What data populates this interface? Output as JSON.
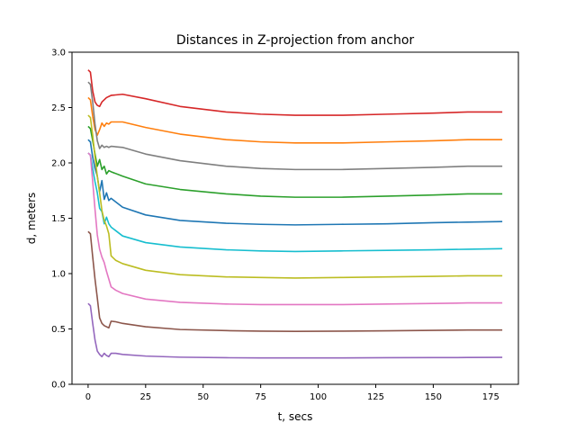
{
  "chart_data": {
    "type": "line",
    "title": "Distances in Z-projection from anchor",
    "xlabel": "t, secs",
    "ylabel": "d, meters",
    "xlim": [
      -7,
      187
    ],
    "ylim": [
      0.0,
      3.0
    ],
    "xticks": [
      0,
      25,
      50,
      75,
      100,
      125,
      150,
      175
    ],
    "yticks": [
      "0.0",
      "0.5",
      "1.0",
      "1.5",
      "2.0",
      "2.5",
      "3.0"
    ],
    "grid": false,
    "series": [
      {
        "color": "#d62728",
        "points": [
          [
            0,
            2.84
          ],
          [
            1,
            2.82
          ],
          [
            2,
            2.65
          ],
          [
            3,
            2.55
          ],
          [
            4,
            2.52
          ],
          [
            5,
            2.51
          ],
          [
            6,
            2.55
          ],
          [
            8,
            2.59
          ],
          [
            10,
            2.61
          ],
          [
            15,
            2.62
          ],
          [
            25,
            2.58
          ],
          [
            40,
            2.51
          ],
          [
            60,
            2.46
          ],
          [
            75,
            2.44
          ],
          [
            90,
            2.43
          ],
          [
            110,
            2.43
          ],
          [
            130,
            2.44
          ],
          [
            150,
            2.45
          ],
          [
            165,
            2.46
          ],
          [
            180,
            2.46
          ]
        ]
      },
      {
        "color": "#ff7f0e",
        "points": [
          [
            0,
            2.59
          ],
          [
            1,
            2.57
          ],
          [
            2,
            2.42
          ],
          [
            3,
            2.3
          ],
          [
            4,
            2.25
          ],
          [
            5,
            2.3
          ],
          [
            6,
            2.36
          ],
          [
            7,
            2.33
          ],
          [
            8,
            2.36
          ],
          [
            9,
            2.35
          ],
          [
            10,
            2.37
          ],
          [
            15,
            2.37
          ],
          [
            25,
            2.32
          ],
          [
            40,
            2.26
          ],
          [
            60,
            2.21
          ],
          [
            75,
            2.19
          ],
          [
            90,
            2.18
          ],
          [
            110,
            2.18
          ],
          [
            130,
            2.19
          ],
          [
            150,
            2.2
          ],
          [
            165,
            2.21
          ],
          [
            180,
            2.21
          ]
        ]
      },
      {
        "color": "#7f7f7f",
        "points": [
          [
            0,
            2.73
          ],
          [
            1,
            2.71
          ],
          [
            2,
            2.55
          ],
          [
            3,
            2.35
          ],
          [
            4,
            2.2
          ],
          [
            5,
            2.13
          ],
          [
            6,
            2.16
          ],
          [
            7,
            2.14
          ],
          [
            8,
            2.15
          ],
          [
            9,
            2.14
          ],
          [
            10,
            2.15
          ],
          [
            15,
            2.14
          ],
          [
            25,
            2.08
          ],
          [
            40,
            2.02
          ],
          [
            60,
            1.97
          ],
          [
            75,
            1.95
          ],
          [
            90,
            1.94
          ],
          [
            110,
            1.94
          ],
          [
            130,
            1.95
          ],
          [
            150,
            1.96
          ],
          [
            165,
            1.97
          ],
          [
            180,
            1.97
          ]
        ]
      },
      {
        "color": "#2ca02c",
        "points": [
          [
            0,
            2.33
          ],
          [
            1,
            2.31
          ],
          [
            2,
            2.2
          ],
          [
            3,
            2.08
          ],
          [
            4,
            1.97
          ],
          [
            5,
            2.03
          ],
          [
            6,
            1.94
          ],
          [
            7,
            1.97
          ],
          [
            8,
            1.9
          ],
          [
            9,
            1.93
          ],
          [
            10,
            1.92
          ],
          [
            15,
            1.88
          ],
          [
            25,
            1.81
          ],
          [
            40,
            1.76
          ],
          [
            60,
            1.72
          ],
          [
            75,
            1.7
          ],
          [
            90,
            1.69
          ],
          [
            110,
            1.69
          ],
          [
            130,
            1.7
          ],
          [
            150,
            1.71
          ],
          [
            165,
            1.72
          ],
          [
            180,
            1.72
          ]
        ]
      },
      {
        "color": "#1f77b4",
        "points": [
          [
            0,
            2.21
          ],
          [
            1,
            2.19
          ],
          [
            2,
            2.05
          ],
          [
            3,
            1.95
          ],
          [
            4,
            1.88
          ],
          [
            5,
            1.74
          ],
          [
            6,
            1.84
          ],
          [
            7,
            1.67
          ],
          [
            8,
            1.73
          ],
          [
            9,
            1.66
          ],
          [
            10,
            1.68
          ],
          [
            15,
            1.6
          ],
          [
            25,
            1.53
          ],
          [
            40,
            1.48
          ],
          [
            60,
            1.455
          ],
          [
            75,
            1.445
          ],
          [
            90,
            1.44
          ],
          [
            110,
            1.445
          ],
          [
            130,
            1.45
          ],
          [
            150,
            1.46
          ],
          [
            165,
            1.465
          ],
          [
            180,
            1.47
          ]
        ]
      },
      {
        "color": "#17becf",
        "points": [
          [
            0,
            2.09
          ],
          [
            1,
            2.07
          ],
          [
            2,
            1.95
          ],
          [
            3,
            1.83
          ],
          [
            4,
            1.73
          ],
          [
            5,
            1.59
          ],
          [
            6,
            1.56
          ],
          [
            7,
            1.45
          ],
          [
            8,
            1.51
          ],
          [
            9,
            1.45
          ],
          [
            10,
            1.42
          ],
          [
            15,
            1.34
          ],
          [
            25,
            1.28
          ],
          [
            40,
            1.24
          ],
          [
            60,
            1.215
          ],
          [
            75,
            1.205
          ],
          [
            90,
            1.2
          ],
          [
            110,
            1.205
          ],
          [
            130,
            1.21
          ],
          [
            150,
            1.215
          ],
          [
            165,
            1.22
          ],
          [
            180,
            1.225
          ]
        ]
      },
      {
        "color": "#bcbd22",
        "points": [
          [
            0,
            2.43
          ],
          [
            1,
            2.41
          ],
          [
            2,
            2.25
          ],
          [
            3,
            2.05
          ],
          [
            4,
            1.88
          ],
          [
            5,
            1.73
          ],
          [
            6,
            1.57
          ],
          [
            7,
            1.48
          ],
          [
            8,
            1.43
          ],
          [
            9,
            1.36
          ],
          [
            10,
            1.16
          ],
          [
            12,
            1.12
          ],
          [
            15,
            1.09
          ],
          [
            25,
            1.03
          ],
          [
            40,
            0.99
          ],
          [
            60,
            0.97
          ],
          [
            75,
            0.965
          ],
          [
            90,
            0.96
          ],
          [
            110,
            0.965
          ],
          [
            130,
            0.97
          ],
          [
            150,
            0.975
          ],
          [
            165,
            0.98
          ],
          [
            180,
            0.98
          ]
        ]
      },
      {
        "color": "#e377c2",
        "points": [
          [
            0,
            2.09
          ],
          [
            1,
            2.07
          ],
          [
            2,
            1.83
          ],
          [
            3,
            1.58
          ],
          [
            4,
            1.35
          ],
          [
            5,
            1.22
          ],
          [
            6,
            1.15
          ],
          [
            7,
            1.1
          ],
          [
            8,
            1.02
          ],
          [
            9,
            0.95
          ],
          [
            10,
            0.88
          ],
          [
            12,
            0.85
          ],
          [
            15,
            0.82
          ],
          [
            25,
            0.77
          ],
          [
            40,
            0.74
          ],
          [
            60,
            0.725
          ],
          [
            75,
            0.72
          ],
          [
            90,
            0.72
          ],
          [
            110,
            0.72
          ],
          [
            130,
            0.725
          ],
          [
            150,
            0.73
          ],
          [
            165,
            0.735
          ],
          [
            180,
            0.735
          ]
        ]
      },
      {
        "color": "#8c564b",
        "points": [
          [
            0,
            1.38
          ],
          [
            1,
            1.36
          ],
          [
            2,
            1.15
          ],
          [
            3,
            0.95
          ],
          [
            4,
            0.78
          ],
          [
            5,
            0.6
          ],
          [
            6,
            0.55
          ],
          [
            7,
            0.53
          ],
          [
            8,
            0.52
          ],
          [
            9,
            0.51
          ],
          [
            10,
            0.57
          ],
          [
            12,
            0.565
          ],
          [
            15,
            0.55
          ],
          [
            25,
            0.52
          ],
          [
            40,
            0.495
          ],
          [
            60,
            0.485
          ],
          [
            75,
            0.48
          ],
          [
            90,
            0.478
          ],
          [
            110,
            0.48
          ],
          [
            130,
            0.483
          ],
          [
            150,
            0.487
          ],
          [
            165,
            0.49
          ],
          [
            180,
            0.49
          ]
        ]
      },
      {
        "color": "#9467bd",
        "points": [
          [
            0,
            0.73
          ],
          [
            1,
            0.71
          ],
          [
            2,
            0.55
          ],
          [
            3,
            0.4
          ],
          [
            4,
            0.3
          ],
          [
            5,
            0.27
          ],
          [
            6,
            0.25
          ],
          [
            7,
            0.28
          ],
          [
            8,
            0.26
          ],
          [
            9,
            0.25
          ],
          [
            10,
            0.28
          ],
          [
            12,
            0.28
          ],
          [
            15,
            0.27
          ],
          [
            25,
            0.255
          ],
          [
            40,
            0.245
          ],
          [
            60,
            0.24
          ],
          [
            75,
            0.238
          ],
          [
            90,
            0.238
          ],
          [
            110,
            0.238
          ],
          [
            130,
            0.24
          ],
          [
            150,
            0.241
          ],
          [
            165,
            0.242
          ],
          [
            180,
            0.243
          ]
        ]
      }
    ]
  }
}
